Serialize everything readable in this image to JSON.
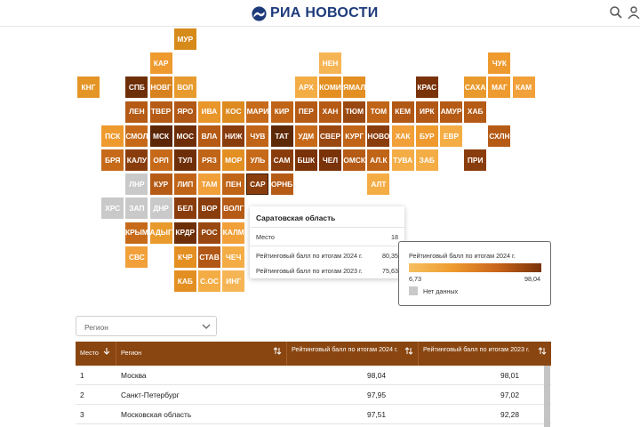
{
  "header": {
    "logo_text": "РИА НОВОСТИ",
    "search_icon": "search-icon",
    "user_icon": "user-icon"
  },
  "regions": [
    {
      "c": "МУР",
      "row": 0,
      "col": 4,
      "color": "#d68a1a"
    },
    {
      "c": "КАР",
      "row": 1,
      "col": 3,
      "color": "#ee9a2f"
    },
    {
      "c": "НЕН",
      "row": 1,
      "col": 10,
      "color": "#f6b554"
    },
    {
      "c": "ЧУК",
      "row": 1,
      "col": 17,
      "color": "#ee9a2f"
    },
    {
      "c": "КНГ",
      "row": 2,
      "col": 0,
      "color": "#e49526"
    },
    {
      "c": "СПБ",
      "row": 2,
      "col": 2,
      "color": "#6e2f08"
    },
    {
      "c": "НОВГ",
      "row": 2,
      "col": 3,
      "color": "#d8821f"
    },
    {
      "c": "ВОЛ",
      "row": 2,
      "col": 4,
      "color": "#e79a2d"
    },
    {
      "c": "АРХ",
      "row": 2,
      "col": 9,
      "color": "#f4ad45"
    },
    {
      "c": "КОМИ",
      "row": 2,
      "col": 10,
      "color": "#e38f22"
    },
    {
      "c": "ЯМАЛ",
      "row": 2,
      "col": 11,
      "color": "#e38f22"
    },
    {
      "c": "КРАС",
      "row": 2,
      "col": 14,
      "color": "#7a3208"
    },
    {
      "c": "САХА",
      "row": 2,
      "col": 16,
      "color": "#e99a2c"
    },
    {
      "c": "МАГ",
      "row": 2,
      "col": 17,
      "color": "#ee9a2f"
    },
    {
      "c": "КАМ",
      "row": 2,
      "col": 18,
      "color": "#f1a03a"
    },
    {
      "c": "ЛЕН",
      "row": 3,
      "col": 2,
      "color": "#b55b16"
    },
    {
      "c": "ТВЕР",
      "row": 3,
      "col": 3,
      "color": "#b55b16"
    },
    {
      "c": "ЯРО",
      "row": 3,
      "col": 4,
      "color": "#b25816"
    },
    {
      "c": "ИВА",
      "row": 3,
      "col": 5,
      "color": "#e9962a"
    },
    {
      "c": "КОС",
      "row": 3,
      "col": 6,
      "color": "#dd8a1f"
    },
    {
      "c": "МАРИ",
      "row": 3,
      "col": 7,
      "color": "#c66a1a"
    },
    {
      "c": "КИР",
      "row": 3,
      "col": 8,
      "color": "#c06417"
    },
    {
      "c": "ПЕР",
      "row": 3,
      "col": 9,
      "color": "#b55b16"
    },
    {
      "c": "ХАН",
      "row": 3,
      "col": 10,
      "color": "#b55b16"
    },
    {
      "c": "ТЮМ",
      "row": 3,
      "col": 11,
      "color": "#9a4811"
    },
    {
      "c": "ТОМ",
      "row": 3,
      "col": 12,
      "color": "#c06417"
    },
    {
      "c": "КЕМ",
      "row": 3,
      "col": 13,
      "color": "#b25816"
    },
    {
      "c": "ИРК",
      "row": 3,
      "col": 14,
      "color": "#b25816"
    },
    {
      "c": "АМУР",
      "row": 3,
      "col": 15,
      "color": "#b55b16"
    },
    {
      "c": "ХАБ",
      "row": 3,
      "col": 16,
      "color": "#b55b16"
    },
    {
      "c": "ПСК",
      "row": 4,
      "col": 1,
      "color": "#ee9a2f"
    },
    {
      "c": "СМОЛ",
      "row": 4,
      "col": 2,
      "color": "#c66a1a"
    },
    {
      "c": "МСК",
      "row": 4,
      "col": 3,
      "color": "#5a2606"
    },
    {
      "c": "МОС",
      "row": 4,
      "col": 4,
      "color": "#6e2f08"
    },
    {
      "c": "ВЛА",
      "row": 4,
      "col": 5,
      "color": "#b55b16"
    },
    {
      "c": "НИЖ",
      "row": 4,
      "col": 6,
      "color": "#8a3d0c"
    },
    {
      "c": "ЧУВ",
      "row": 4,
      "col": 7,
      "color": "#c06417"
    },
    {
      "c": "ТАТ",
      "row": 4,
      "col": 8,
      "color": "#5e2907"
    },
    {
      "c": "УДМ",
      "row": 4,
      "col": 9,
      "color": "#c66a1a"
    },
    {
      "c": "СВЕР",
      "row": 4,
      "col": 10,
      "color": "#9a4811"
    },
    {
      "c": "КУРГ",
      "row": 4,
      "col": 11,
      "color": "#c06417"
    },
    {
      "c": "НОВО",
      "row": 4,
      "col": 12,
      "color": "#8a3d0c"
    },
    {
      "c": "ХАК",
      "row": 4,
      "col": 13,
      "color": "#f1a03a"
    },
    {
      "c": "БУР",
      "row": 4,
      "col": 14,
      "color": "#ee9a2f"
    },
    {
      "c": "ЕВР",
      "row": 4,
      "col": 15,
      "color": "#f4ad45"
    },
    {
      "c": "СХЛН",
      "row": 4,
      "col": 17,
      "color": "#b55b16"
    },
    {
      "c": "БРЯ",
      "row": 5,
      "col": 1,
      "color": "#c66a1a"
    },
    {
      "c": "КАЛУ",
      "row": 5,
      "col": 2,
      "color": "#8a3d0c"
    },
    {
      "c": "ОРЛ",
      "row": 5,
      "col": 3,
      "color": "#c66a1a"
    },
    {
      "c": "ТУЛ",
      "row": 5,
      "col": 4,
      "color": "#6e2f08"
    },
    {
      "c": "РЯЗ",
      "row": 5,
      "col": 5,
      "color": "#c06417"
    },
    {
      "c": "МОР",
      "row": 5,
      "col": 6,
      "color": "#e38f22"
    },
    {
      "c": "УЛЬ",
      "row": 5,
      "col": 7,
      "color": "#c66a1a"
    },
    {
      "c": "САМ",
      "row": 5,
      "col": 8,
      "color": "#8a3d0c"
    },
    {
      "c": "БШК",
      "row": 5,
      "col": 9,
      "color": "#7a3208"
    },
    {
      "c": "ЧЕЛ",
      "row": 5,
      "col": 10,
      "color": "#7a3208"
    },
    {
      "c": "ОМСК",
      "row": 5,
      "col": 11,
      "color": "#b55b16"
    },
    {
      "c": "АЛ.К",
      "row": 5,
      "col": 12,
      "color": "#c06417"
    },
    {
      "c": "ТУВА",
      "row": 5,
      "col": 13,
      "color": "#f4ad45"
    },
    {
      "c": "ЗАБ",
      "row": 5,
      "col": 14,
      "color": "#f4ad45"
    },
    {
      "c": "ПРИ",
      "row": 5,
      "col": 16,
      "color": "#8a3d0c"
    },
    {
      "c": "ЛНР",
      "row": 6,
      "col": 2,
      "color": "#c9c9c9"
    },
    {
      "c": "КУР",
      "row": 6,
      "col": 3,
      "color": "#b55b16"
    },
    {
      "c": "ЛИП",
      "row": 6,
      "col": 4,
      "color": "#c06417"
    },
    {
      "c": "ТАМ",
      "row": 6,
      "col": 5,
      "color": "#f1a03a"
    },
    {
      "c": "ПЕН",
      "row": 6,
      "col": 6,
      "color": "#c06417"
    },
    {
      "c": "САР",
      "row": 6,
      "col": 7,
      "color": "#8a3d0c",
      "selected": true
    },
    {
      "c": "ОРНБ",
      "row": 6,
      "col": 8,
      "color": "#b55b16"
    },
    {
      "c": "АЛТ",
      "row": 6,
      "col": 12,
      "color": "#f4ad45"
    },
    {
      "c": "ХРС",
      "row": 7,
      "col": 1,
      "color": "#c9c9c9"
    },
    {
      "c": "ЗАП",
      "row": 7,
      "col": 2,
      "color": "#c9c9c9"
    },
    {
      "c": "ДНР",
      "row": 7,
      "col": 3,
      "color": "#c9c9c9"
    },
    {
      "c": "БЕЛ",
      "row": 7,
      "col": 4,
      "color": "#8a3d0c"
    },
    {
      "c": "ВОР",
      "row": 7,
      "col": 5,
      "color": "#8a3d0c"
    },
    {
      "c": "ВОЛГ",
      "row": 7,
      "col": 6,
      "color": "#b55b16"
    },
    {
      "c": "КРЫМ",
      "row": 8,
      "col": 2,
      "color": "#c66a1a"
    },
    {
      "c": "АДЫГ",
      "row": 8,
      "col": 3,
      "color": "#e99a2c"
    },
    {
      "c": "КРДР",
      "row": 8,
      "col": 4,
      "color": "#6e2f08"
    },
    {
      "c": "РОС",
      "row": 8,
      "col": 5,
      "color": "#9a4811"
    },
    {
      "c": "КАЛМ",
      "row": 8,
      "col": 6,
      "color": "#f1a03a"
    },
    {
      "c": "СВС",
      "row": 9,
      "col": 2,
      "color": "#f1a03a"
    },
    {
      "c": "КЧР",
      "row": 9,
      "col": 4,
      "color": "#e38f22"
    },
    {
      "c": "СТАВ",
      "row": 9,
      "col": 5,
      "color": "#b25816"
    },
    {
      "c": "ЧЕЧ",
      "row": 9,
      "col": 6,
      "color": "#f4ad45"
    },
    {
      "c": "КАБ",
      "row": 10,
      "col": 4,
      "color": "#e38f22"
    },
    {
      "c": "С.ОС",
      "row": 10,
      "col": 5,
      "color": "#f4ad45"
    },
    {
      "c": "ИНГ",
      "row": 10,
      "col": 6,
      "color": "#f6b554"
    }
  ],
  "tooltip": {
    "title": "Саратовская область",
    "rows": [
      {
        "k": "Место",
        "v": "18"
      },
      {
        "k": "Рейтинговый балл по итогам 2024 г.",
        "v": "80,35"
      },
      {
        "k": "Рейтинговый балл по итогам 2023 г.",
        "v": "75,63"
      }
    ]
  },
  "legend": {
    "title": "Рейтинговый балл по итогам 2024 г.",
    "min": "6,73",
    "max": "98,04",
    "nodata": "Нет данных",
    "colors": {
      "low": "#f6c060",
      "high": "#7a3208",
      "nodata": "#c9c9c9"
    }
  },
  "filter": {
    "placeholder": "Регион"
  },
  "table": {
    "headers": [
      "Место",
      "Регион",
      "Рейтинговый балл по итогам 2024 г.",
      "Рейтинговый балл по итогам 2023 г."
    ],
    "rows": [
      [
        "1",
        "Москва",
        "98,04",
        "98,01"
      ],
      [
        "2",
        "Санкт-Петербург",
        "97,95",
        "97,02"
      ],
      [
        "3",
        "Московская область",
        "97,51",
        "92,28"
      ]
    ]
  },
  "colors": {
    "header_bg": "#8a4610",
    "brand": "#1d3b7a"
  }
}
